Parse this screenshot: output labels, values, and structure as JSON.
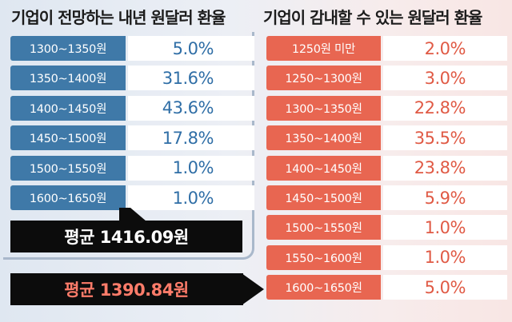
{
  "chart_data": [
    {
      "type": "table",
      "title": "기업이 전망하는 내년 원달러 환율",
      "categories": [
        "1300~1350원",
        "1350~1400원",
        "1400~1450원",
        "1450~1500원",
        "1500~1550원",
        "1600~1650원"
      ],
      "values": [
        "5.0%",
        "31.6%",
        "43.6%",
        "17.8%",
        "1.0%",
        "1.0%"
      ],
      "average": "평균 1416.09원"
    },
    {
      "type": "table",
      "title": "기업이 감내할 수 있는 원달러 환율",
      "categories": [
        "1250원 미만",
        "1250~1300원",
        "1300~1350원",
        "1350~1400원",
        "1400~1450원",
        "1450~1500원",
        "1500~1550원",
        "1550~1600원",
        "1600~1650원"
      ],
      "values": [
        "2.0%",
        "3.0%",
        "22.8%",
        "35.5%",
        "23.8%",
        "5.9%",
        "1.0%",
        "1.0%",
        "5.0%"
      ],
      "average": "평균 1390.84원"
    }
  ],
  "colors": {
    "left_accent": "#3f79a8",
    "right_accent": "#e86651",
    "average_box": "#0c0c0c"
  }
}
